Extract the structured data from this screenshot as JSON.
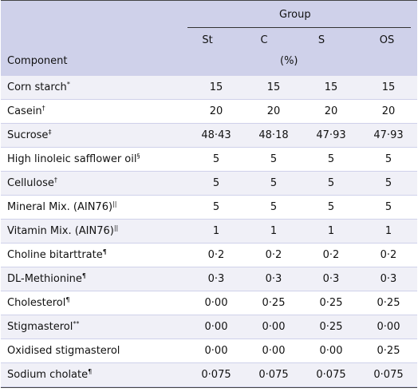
{
  "header": {
    "group": "Group",
    "columns": [
      "St",
      "C",
      "S",
      "OS"
    ],
    "unit": "(%)",
    "component": "Component"
  },
  "rows": [
    {
      "name": "Corn starch",
      "sup": "*",
      "values": [
        "15",
        "15",
        "15",
        "15"
      ]
    },
    {
      "name": "Casein",
      "sup": "†",
      "values": [
        "20",
        "20",
        "20",
        "20"
      ]
    },
    {
      "name": "Sucrose",
      "sup": "‡",
      "values": [
        "48·43",
        "48·18",
        "47·93",
        "47·93"
      ]
    },
    {
      "name": "High linoleic safflower oil",
      "sup": "§",
      "values": [
        "5",
        "5",
        "5",
        "5"
      ]
    },
    {
      "name": "Cellulose",
      "sup": "†",
      "values": [
        "5",
        "5",
        "5",
        "5"
      ]
    },
    {
      "name": "Mineral Mix. (AIN76)",
      "sup": "||",
      "values": [
        "5",
        "5",
        "5",
        "5"
      ]
    },
    {
      "name": "Vitamin Mix. (AIN76)",
      "sup": "||",
      "values": [
        "1",
        "1",
        "1",
        "1"
      ]
    },
    {
      "name": "Choline bitarttrate",
      "sup": "¶",
      "values": [
        "0·2",
        "0·2",
        "0·2",
        "0·2"
      ]
    },
    {
      "name": "DL-Methionine",
      "sup": "¶",
      "values": [
        "0·3",
        "0·3",
        "0·3",
        "0·3"
      ]
    },
    {
      "name": "Cholesterol",
      "sup": "¶",
      "values": [
        "0·00",
        "0·25",
        "0·25",
        "0·25"
      ]
    },
    {
      "name": "Stigmasterol",
      "sup": "**",
      "values": [
        "0·00",
        "0·00",
        "0·25",
        "0·00"
      ]
    },
    {
      "name": "Oxidised stigmasterol",
      "sup": "",
      "values": [
        "0·00",
        "0·00",
        "0·00",
        "0·25"
      ]
    },
    {
      "name": "Sodium cholate",
      "sup": "¶",
      "values": [
        "0·075",
        "0·075",
        "0·075",
        "0·075"
      ]
    }
  ]
}
